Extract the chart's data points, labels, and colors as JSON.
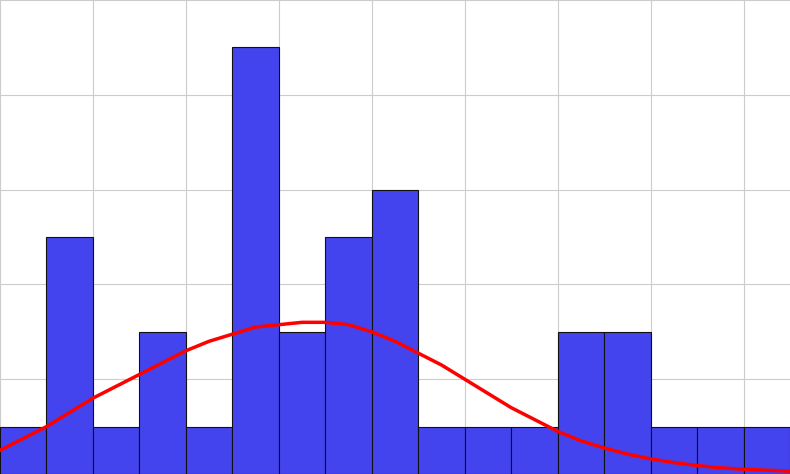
{
  "bar_heights": [
    1,
    5,
    1,
    3,
    1,
    9,
    3,
    5,
    6,
    1,
    1,
    1,
    3,
    3,
    1,
    1,
    1
  ],
  "bar_color": "#4444ee",
  "bar_edgecolor": "#111111",
  "line_color": "#ff0000",
  "line_width": 2.5,
  "background_color": "#ffffff",
  "grid_color": "#cccccc",
  "kde_x": [
    0.0,
    0.5,
    1.0,
    1.5,
    2.0,
    2.5,
    3.0,
    3.5,
    4.0,
    4.5,
    5.0,
    5.5,
    6.0,
    6.5,
    7.0,
    7.5,
    8.0,
    8.5,
    9.0,
    9.5,
    10.0,
    10.5,
    11.0,
    11.5,
    12.0,
    12.5,
    13.0,
    13.5,
    14.0,
    14.5,
    15.0,
    15.5,
    16.0,
    16.5,
    17.0
  ],
  "kde_y": [
    0.5,
    0.75,
    1.0,
    1.3,
    1.6,
    1.85,
    2.1,
    2.35,
    2.6,
    2.8,
    2.95,
    3.1,
    3.15,
    3.2,
    3.2,
    3.15,
    3.0,
    2.8,
    2.55,
    2.3,
    2.0,
    1.7,
    1.4,
    1.15,
    0.9,
    0.7,
    0.55,
    0.42,
    0.32,
    0.24,
    0.18,
    0.13,
    0.1,
    0.08,
    0.06
  ],
  "xlim_left": 0,
  "xlim_right": 17,
  "ylim_bottom": 0,
  "ylim_top": 10,
  "n_bars": 17
}
